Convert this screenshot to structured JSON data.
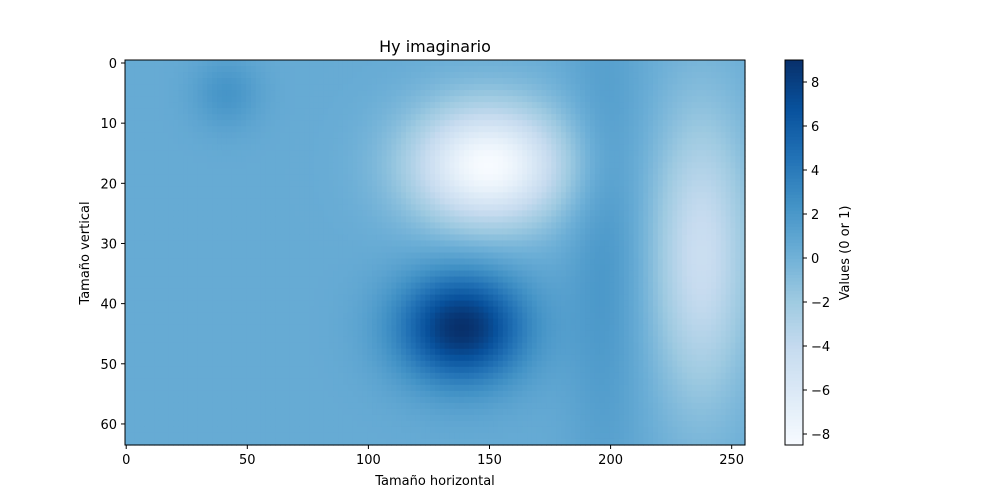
{
  "chart_data": {
    "type": "heatmap",
    "title": "Hy imaginario",
    "xlabel": "Tamaño horizontal",
    "ylabel": "Tamaño vertical",
    "colorbar_label": "Values (0 or 1)",
    "colormap": "Blues",
    "colormap_stops": [
      "#f7fbff",
      "#deebf7",
      "#c6dbef",
      "#9ecae1",
      "#6baed6",
      "#4292c6",
      "#2171b5",
      "#08519c",
      "#08306b"
    ],
    "xlim": [
      0,
      255
    ],
    "ylim": [
      63,
      0
    ],
    "xticks": [
      0,
      50,
      100,
      150,
      200,
      250
    ],
    "yticks": [
      0,
      10,
      20,
      30,
      40,
      50,
      60
    ],
    "grid": false,
    "value_range": [
      -8.5,
      9
    ],
    "colorbar_ticks": [
      8,
      6,
      4,
      2,
      0,
      -2,
      -4,
      -6,
      -8
    ],
    "field_features": [
      {
        "kind": "background",
        "value": 0.5
      },
      {
        "kind": "minimum",
        "x": 150,
        "y": 17,
        "value": -8.5,
        "sx": 32,
        "sy": 10
      },
      {
        "kind": "maximum",
        "x": 139,
        "y": 44,
        "value": 9,
        "sx": 26,
        "sy": 9
      },
      {
        "kind": "low_band",
        "x": 238,
        "y": 32,
        "value": -4.5,
        "sx": 20,
        "sy": 24
      },
      {
        "kind": "high_band",
        "x": 198,
        "y": 30,
        "value": 2,
        "sx": 16,
        "sy": 40
      },
      {
        "kind": "high_spot",
        "x": 42,
        "y": 5,
        "value": 2.2,
        "sx": 14,
        "sy": 6
      }
    ]
  }
}
